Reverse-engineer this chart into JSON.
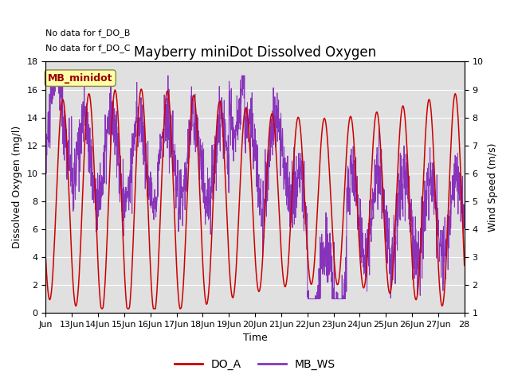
{
  "title": "Mayberry miniDot Dissolved Oxygen",
  "xlabel": "Time",
  "ylabel_left": "Dissolved Oxygen (mg/l)",
  "ylabel_right": "Wind Speed (m/s)",
  "annotation_lines": [
    "No data for f_DO_B",
    "No data for f_DO_C"
  ],
  "legend_box_label": "MB_minidot",
  "legend_entries": [
    "DO_A",
    "MB_WS"
  ],
  "legend_colors": [
    "#cc0000",
    "#8833bb"
  ],
  "left_ylim": [
    0,
    18
  ],
  "right_ylim": [
    1.0,
    10.0
  ],
  "left_yticks": [
    0,
    2,
    4,
    6,
    8,
    10,
    12,
    14,
    16,
    18
  ],
  "right_yticks": [
    1.0,
    2.0,
    3.0,
    4.0,
    5.0,
    6.0,
    7.0,
    8.0,
    9.0,
    10.0
  ],
  "xtick_positions": [
    12,
    13,
    14,
    15,
    16,
    17,
    18,
    19,
    20,
    21,
    22,
    23,
    24,
    25,
    26,
    27,
    28
  ],
  "xtick_labels": [
    "Jun",
    "13Jun",
    "14Jun",
    "15Jun",
    "16Jun",
    "17Jun",
    "18Jun",
    "19Jun",
    "20Jun",
    "21Jun",
    "22Jun",
    "23Jun",
    "24Jun",
    "25Jun",
    "26Jun",
    "27Jun",
    "28"
  ],
  "do_color": "#cc0000",
  "ws_color": "#8833bb",
  "background_color": "#e0e0e0",
  "grid_color": "#ffffff",
  "title_fontsize": 12,
  "axis_label_fontsize": 9,
  "tick_fontsize": 8,
  "annotation_fontsize": 8
}
